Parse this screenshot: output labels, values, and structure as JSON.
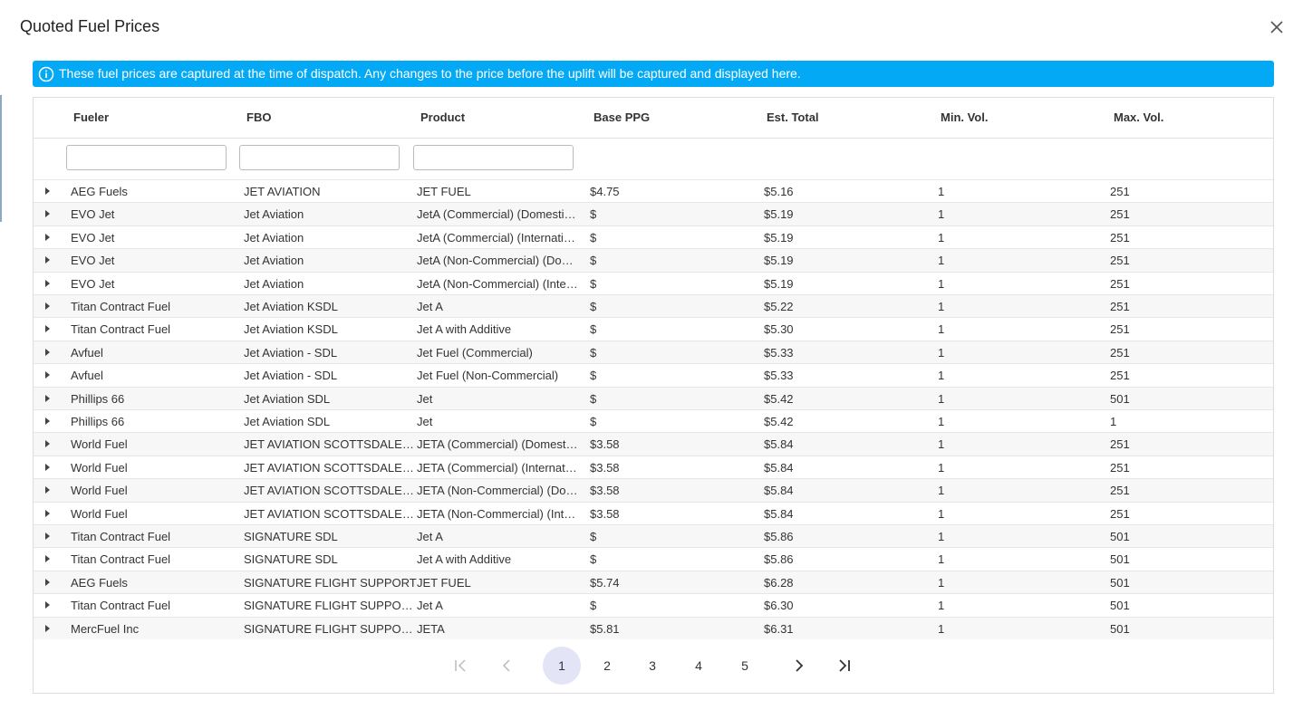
{
  "dialog": {
    "title": "Quoted Fuel Prices",
    "banner": "These fuel prices are captured at the time of dispatch. Any changes to the price before the uplift will be captured and displayed here."
  },
  "table": {
    "columns": [
      "Fueler",
      "FBO",
      "Product",
      "Base PPG",
      "Est. Total",
      "Min. Vol.",
      "Max. Vol."
    ],
    "rows": [
      [
        "AEG Fuels",
        "JET AVIATION",
        "JET FUEL",
        "$4.75",
        "$5.16",
        "1",
        "251"
      ],
      [
        "EVO Jet",
        "Jet Aviation",
        "JetA (Commercial) (Domesti…",
        "$",
        "$5.19",
        "1",
        "251"
      ],
      [
        "EVO Jet",
        "Jet Aviation",
        "JetA (Commercial) (Internati…",
        "$",
        "$5.19",
        "1",
        "251"
      ],
      [
        "EVO Jet",
        "Jet Aviation",
        "JetA (Non-Commercial) (Do…",
        "$",
        "$5.19",
        "1",
        "251"
      ],
      [
        "EVO Jet",
        "Jet Aviation",
        "JetA (Non-Commercial) (Inte…",
        "$",
        "$5.19",
        "1",
        "251"
      ],
      [
        "Titan Contract Fuel",
        "Jet Aviation KSDL",
        "Jet A",
        "$",
        "$5.22",
        "1",
        "251"
      ],
      [
        "Titan Contract Fuel",
        "Jet Aviation KSDL",
        "Jet A with Additive",
        "$",
        "$5.30",
        "1",
        "251"
      ],
      [
        "Avfuel",
        "Jet Aviation - SDL",
        "Jet Fuel (Commercial)",
        "$",
        "$5.33",
        "1",
        "251"
      ],
      [
        "Avfuel",
        "Jet Aviation - SDL",
        "Jet Fuel (Non-Commercial)",
        "$",
        "$5.33",
        "1",
        "251"
      ],
      [
        "Phillips 66",
        "Jet Aviation SDL",
        "Jet",
        "$",
        "$5.42",
        "1",
        "501"
      ],
      [
        "Phillips 66",
        "Jet Aviation SDL",
        "Jet",
        "$",
        "$5.42",
        "1",
        "1"
      ],
      [
        "World Fuel",
        "JET AVIATION SCOTTSDALE…",
        "JETA (Commercial) (Domest…",
        "$3.58",
        "$5.84",
        "1",
        "251"
      ],
      [
        "World Fuel",
        "JET AVIATION SCOTTSDALE…",
        "JETA (Commercial) (Internat…",
        "$3.58",
        "$5.84",
        "1",
        "251"
      ],
      [
        "World Fuel",
        "JET AVIATION SCOTTSDALE…",
        "JETA (Non-Commercial) (Do…",
        "$3.58",
        "$5.84",
        "1",
        "251"
      ],
      [
        "World Fuel",
        "JET AVIATION SCOTTSDALE…",
        "JETA (Non-Commercial) (Int…",
        "$3.58",
        "$5.84",
        "1",
        "251"
      ],
      [
        "Titan Contract Fuel",
        "SIGNATURE SDL",
        "Jet A",
        "$",
        "$5.86",
        "1",
        "501"
      ],
      [
        "Titan Contract Fuel",
        "SIGNATURE SDL",
        "Jet A with Additive",
        "$",
        "$5.86",
        "1",
        "501"
      ],
      [
        "AEG Fuels",
        "SIGNATURE FLIGHT SUPPORT",
        "JET FUEL",
        "$5.74",
        "$6.28",
        "1",
        "501"
      ],
      [
        "Titan Contract Fuel",
        "SIGNATURE FLIGHT SUPPO…",
        "Jet A",
        "$",
        "$6.30",
        "1",
        "501"
      ],
      [
        "MercFuel Inc",
        "SIGNATURE FLIGHT SUPPO…",
        "JETA",
        "$5.81",
        "$6.31",
        "1",
        "501"
      ]
    ]
  },
  "pagination": {
    "pages": [
      1,
      2,
      3,
      4,
      5
    ],
    "current": 1
  }
}
